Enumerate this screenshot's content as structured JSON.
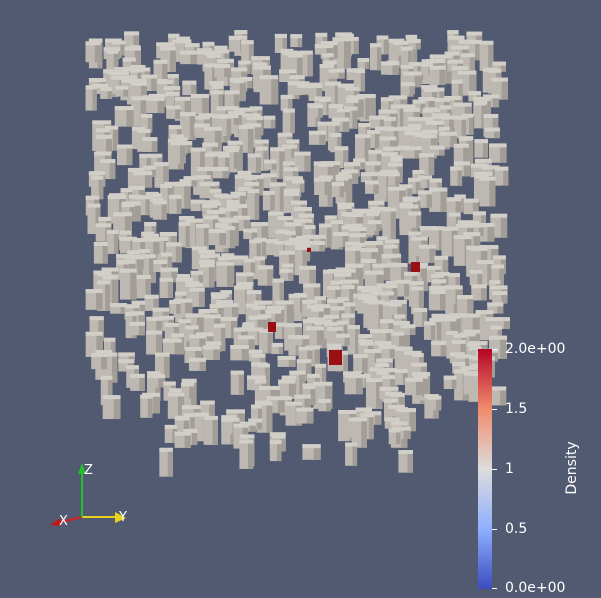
{
  "viewport": {
    "background": "#525a72",
    "voxel_color": "#bdb9b2",
    "high_density_color": "#9a0f12"
  },
  "colorbar": {
    "title": "Density",
    "ticks": [
      {
        "value": 2.0,
        "label": "2.0e+00"
      },
      {
        "value": 1.5,
        "label": "1.5"
      },
      {
        "value": 1.0,
        "label": "1"
      },
      {
        "value": 0.5,
        "label": "0.5"
      },
      {
        "value": 0.0,
        "label": "0.0e+00"
      }
    ],
    "range": [
      0.0,
      2.0
    ],
    "colors": {
      "min": "#3b4cc0",
      "mid": "#dddcdc",
      "max": "#b40426"
    }
  },
  "orientation_axes": {
    "x": {
      "label": "X",
      "color": "#d62020"
    },
    "y": {
      "label": "Y",
      "color": "#e8d21c"
    },
    "z": {
      "label": "Z",
      "color": "#22c02a"
    }
  }
}
